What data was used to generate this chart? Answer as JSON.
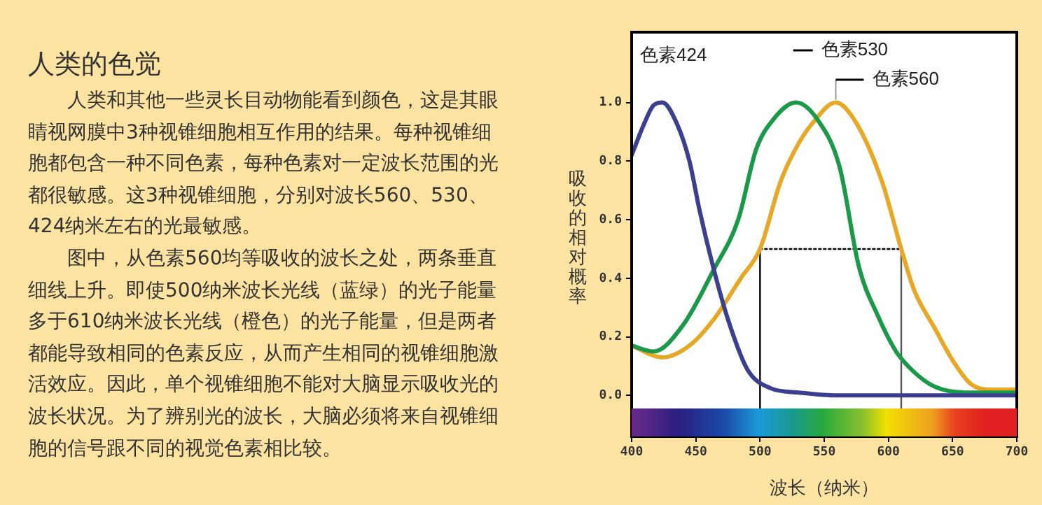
{
  "chart_data": {
    "type": "line",
    "title": "人类的色觉",
    "annotations": [
      "人类和其他一些灵长目动物能看到颜色，这是其眼睛视网膜中3种视锥细胞相互作用的结果。每种视锥细胞都包含一种不同色素，每种色素对一定波长范围的光都很敏感。这3种视锥细胞，分别对波长560、530、424纳米左右的光最敏感。",
      "图中，从色素560均等吸收的波长之处，两条垂直细线上升。即使500纳米波长光线（蓝绿）的光子能量多于610纳米波长光线（橙色）的光子能量，但是两者都能导致相同的色素反应，从而产生相同的视锥细胞激活效应。因此，单个视锥细胞不能对大脑显示吸收光的波长状况。为了辨别光的波长，大脑必须将来自视锥细胞的信号跟不同的视觉色素相比较。"
    ],
    "xlabel": "波长（纳米）",
    "ylabel": "吸收的相对概率",
    "xlim": [
      400,
      700
    ],
    "xticks": [
      400,
      450,
      500,
      550,
      600,
      650,
      700
    ],
    "ylim": [
      -0.14,
      1.24
    ],
    "yticks": [
      {
        "value": 0,
        "label": "0.0"
      },
      {
        "value": 0.2,
        "label": "0.2"
      },
      {
        "value": 0.4,
        "label": "0.4"
      },
      {
        "value": 0.6,
        "label": "0.6"
      },
      {
        "value": 0.8,
        "label": "0.8"
      },
      {
        "value": 1,
        "label": "1.0"
      }
    ],
    "grid": false,
    "legend": false,
    "marker": "none",
    "line_style": "solid",
    "series": [
      {
        "name": "色素424",
        "color": "#3b3f90",
        "x": [
          400,
          410,
          417,
          424,
          435,
          445,
          453,
          464,
          475,
          490,
          508,
          530,
          560,
          600,
          650,
          700
        ],
        "values": [
          0.82,
          0.93,
          0.99,
          1.0,
          0.93,
          0.8,
          0.63,
          0.43,
          0.26,
          0.09,
          0.025,
          0.01,
          0.0,
          0.0,
          0.0,
          0.0
        ]
      },
      {
        "name": "色素530",
        "color": "#1a9a48",
        "x": [
          400,
          417,
          440,
          464,
          483,
          497,
          510,
          528,
          545,
          562,
          577,
          592,
          606,
          620,
          636,
          660,
          700
        ],
        "values": [
          0.17,
          0.15,
          0.24,
          0.43,
          0.6,
          0.84,
          0.94,
          1.0,
          0.94,
          0.78,
          0.44,
          0.27,
          0.15,
          0.08,
          0.03,
          0.01,
          0.01
        ]
      },
      {
        "name": "色素560",
        "color": "#e8a825",
        "x": [
          400,
          424,
          445,
          464,
          485,
          500,
          516,
          530,
          541,
          559,
          575,
          595,
          610,
          620,
          636,
          650,
          664,
          680,
          700
        ],
        "values": [
          0.17,
          0.13,
          0.17,
          0.26,
          0.4,
          0.5,
          0.73,
          0.86,
          0.93,
          1.0,
          0.93,
          0.73,
          0.5,
          0.36,
          0.23,
          0.12,
          0.04,
          0.02,
          0.02
        ]
      },
      {
        "color": "#000000",
        "x": [
          500,
          610
        ],
        "values": [
          0.5,
          0.5
        ],
        "line_style": "dotted"
      },
      {
        "color": "#000000",
        "x": [
          500,
          500
        ],
        "values": [
          -0.05,
          0.5
        ]
      },
      {
        "color": "#555555",
        "x": [
          610,
          610
        ],
        "values": [
          -0.05,
          0.5
        ]
      }
    ]
  }
}
